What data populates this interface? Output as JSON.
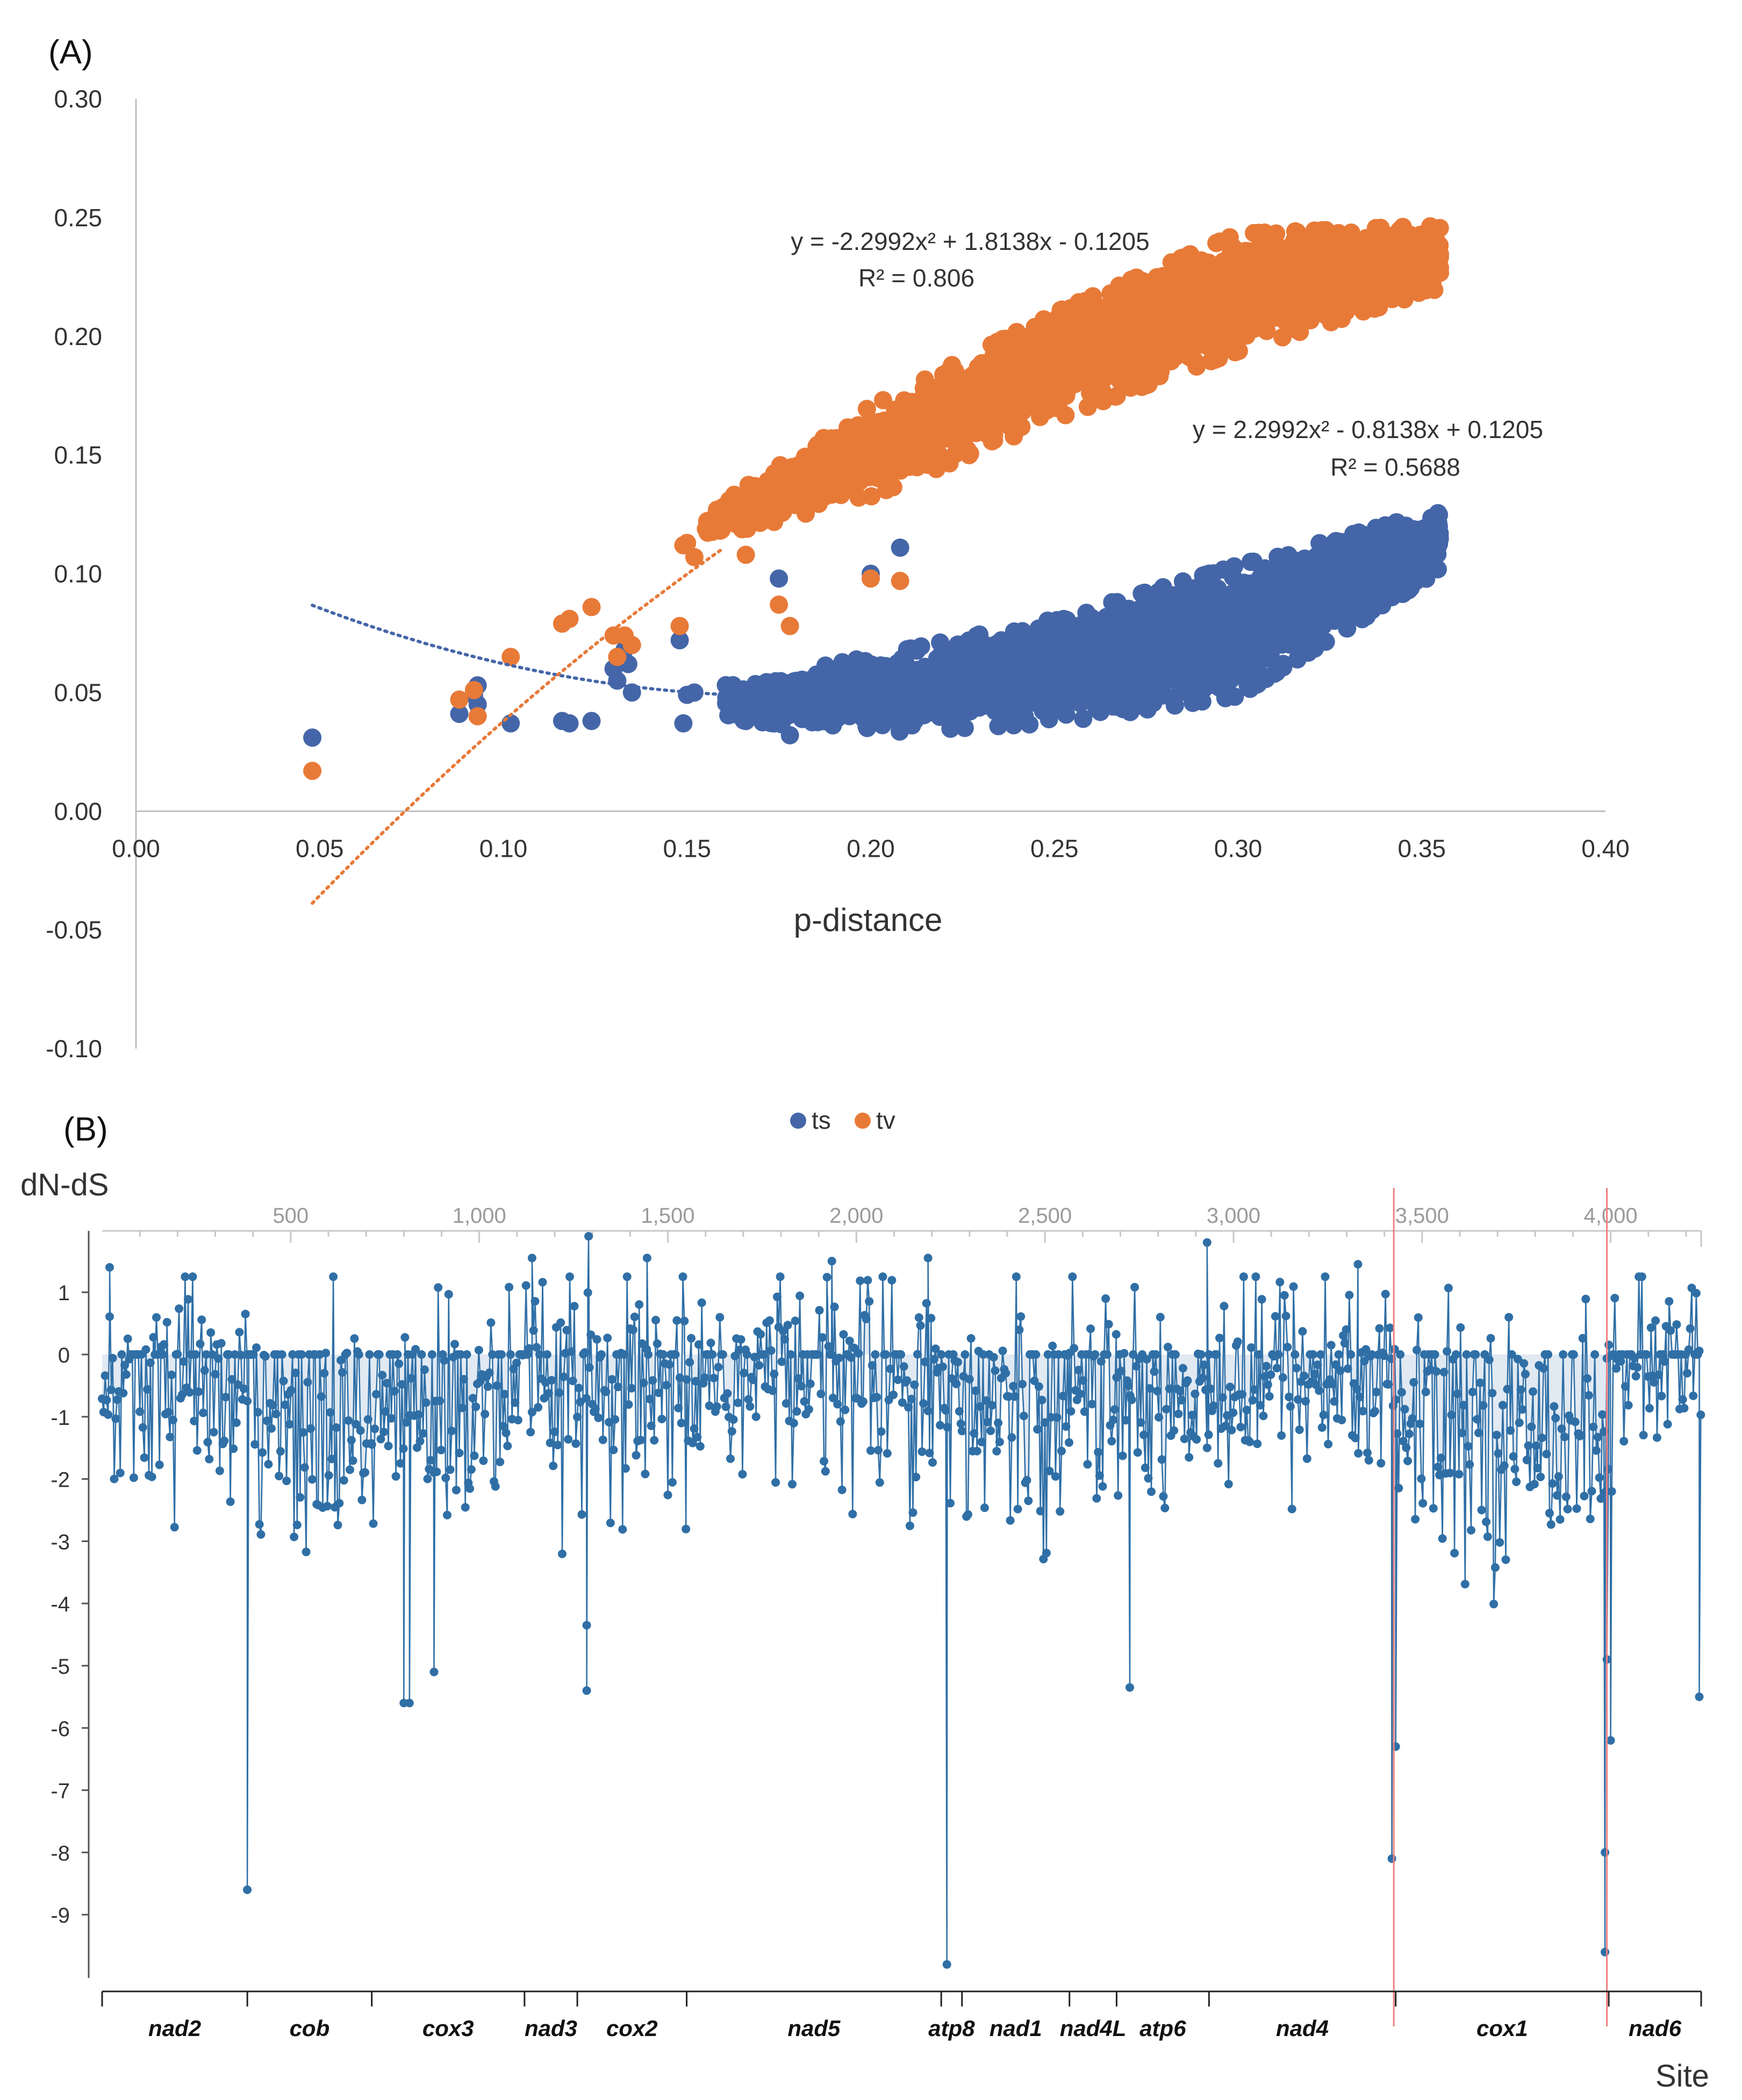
{
  "panels": {
    "a_label": "(A)",
    "b_label": "(B)"
  },
  "chart_data": [
    {
      "type": "scatter",
      "title": "",
      "xlabel": "p-distance",
      "ylabel": "",
      "xlim": [
        0.0,
        0.4
      ],
      "ylim": [
        -0.1,
        0.3
      ],
      "x_ticks": [
        "0.00",
        "0.05",
        "0.10",
        "0.15",
        "0.20",
        "0.25",
        "0.30",
        "0.35",
        "0.40"
      ],
      "y_ticks": [
        "-0.10",
        "-0.05",
        "0.00",
        "0.05",
        "0.10",
        "0.15",
        "0.20",
        "0.25",
        "0.30"
      ],
      "grid": false,
      "legend_position": "bottom",
      "series": [
        {
          "name": "ts",
          "color": "#4466a8",
          "trendline": {
            "a": 2.2992,
            "b": -0.8138,
            "c": 0.1205,
            "x_range": [
              0.048,
              0.18
            ]
          },
          "equation": "y = 2.2992x² - 0.8138x + 0.1205",
          "r2": "R² = 0.5688",
          "outliers": [
            [
              0.048,
              0.031
            ],
            [
              0.088,
              0.041
            ],
            [
              0.092,
              0.049
            ],
            [
              0.093,
              0.053
            ],
            [
              0.093,
              0.045
            ],
            [
              0.102,
              0.037
            ],
            [
              0.116,
              0.038
            ],
            [
              0.118,
              0.037
            ],
            [
              0.124,
              0.038
            ],
            [
              0.13,
              0.06
            ],
            [
              0.131,
              0.055
            ],
            [
              0.133,
              0.068
            ],
            [
              0.134,
              0.062
            ],
            [
              0.135,
              0.05
            ],
            [
              0.148,
              0.072
            ],
            [
              0.149,
              0.037
            ],
            [
              0.15,
              0.049
            ],
            [
              0.152,
              0.05
            ],
            [
              0.166,
              0.038
            ],
            [
              0.175,
              0.098
            ],
            [
              0.178,
              0.032
            ],
            [
              0.2,
              0.1
            ],
            [
              0.208,
              0.111
            ]
          ],
          "cloud": {
            "x_range": [
              0.16,
              0.355
            ],
            "lower": [
              [
                0.16,
                0.04
              ],
              [
                0.2,
                0.035
              ],
              [
                0.25,
                0.04
              ],
              [
                0.3,
                0.052
              ],
              [
                0.355,
                0.103
              ]
            ],
            "upper": [
              [
                0.16,
                0.052
              ],
              [
                0.2,
                0.063
              ],
              [
                0.25,
                0.078
              ],
              [
                0.3,
                0.1
              ],
              [
                0.355,
                0.125
              ]
            ]
          }
        },
        {
          "name": "tv",
          "color": "#e87a38",
          "trendline": {
            "a": -2.2992,
            "b": 1.8138,
            "c": -0.1205,
            "x_range": [
              0.048,
              0.16
            ]
          },
          "equation": "y = -2.2992x² + 1.8138x - 0.1205",
          "r2": "R² = 0.806",
          "outliers": [
            [
              0.048,
              0.017
            ],
            [
              0.088,
              0.047
            ],
            [
              0.092,
              0.051
            ],
            [
              0.093,
              0.04
            ],
            [
              0.102,
              0.065
            ],
            [
              0.116,
              0.079
            ],
            [
              0.118,
              0.081
            ],
            [
              0.124,
              0.086
            ],
            [
              0.13,
              0.074
            ],
            [
              0.131,
              0.065
            ],
            [
              0.133,
              0.074
            ],
            [
              0.135,
              0.07
            ],
            [
              0.148,
              0.078
            ],
            [
              0.149,
              0.112
            ],
            [
              0.15,
              0.113
            ],
            [
              0.152,
              0.107
            ],
            [
              0.166,
              0.108
            ],
            [
              0.175,
              0.087
            ],
            [
              0.178,
              0.078
            ],
            [
              0.2,
              0.098
            ],
            [
              0.208,
              0.097
            ]
          ],
          "cloud": {
            "x_range": [
              0.155,
              0.355
            ],
            "lower": [
              [
                0.155,
                0.115
              ],
              [
                0.2,
                0.135
              ],
              [
                0.25,
                0.168
              ],
              [
                0.3,
                0.197
              ],
              [
                0.355,
                0.222
              ]
            ],
            "upper": [
              [
                0.155,
                0.125
              ],
              [
                0.2,
                0.168
              ],
              [
                0.25,
                0.207
              ],
              [
                0.3,
                0.24
              ],
              [
                0.355,
                0.245
              ]
            ]
          }
        }
      ]
    },
    {
      "type": "line",
      "title": "",
      "ylabel": "dN-dS",
      "xlabel": "Site",
      "xlim": [
        0,
        4240
      ],
      "ylim": [
        -10,
        1.9
      ],
      "x_ticks": [
        "500",
        "1,000",
        "1,500",
        "2,000",
        "2,500",
        "3,000",
        "3,500",
        "4,000"
      ],
      "y_ticks": [
        "1",
        "0",
        "-1",
        "-2",
        "-3",
        "-4",
        "-5",
        "-6",
        "-7",
        "-8",
        "-9"
      ],
      "series_color": "#2f6fa6",
      "fill_color": "#c8d7e8",
      "red_lines": [
        3425,
        3990
      ],
      "genes": [
        {
          "name": "nad2",
          "start": 0,
          "end": 385
        },
        {
          "name": "cob",
          "start": 385,
          "end": 715
        },
        {
          "name": "cox3",
          "start": 715,
          "end": 1120
        },
        {
          "name": "nad3",
          "start": 1120,
          "end": 1260
        },
        {
          "name": "cox2",
          "start": 1260,
          "end": 1550
        },
        {
          "name": "nad5",
          "start": 1550,
          "end": 2225
        },
        {
          "name": "atp8",
          "start": 2225,
          "end": 2280
        },
        {
          "name": "nad1",
          "start": 2280,
          "end": 2565
        },
        {
          "name": "nad4L",
          "start": 2565,
          "end": 2690
        },
        {
          "name": "atp6",
          "start": 2690,
          "end": 2935
        },
        {
          "name": "nad4",
          "start": 2935,
          "end": 3430
        },
        {
          "name": "cox1",
          "start": 3430,
          "end": 3995
        },
        {
          "name": "nad6",
          "start": 3995,
          "end": 4240
        }
      ],
      "extremes": [
        [
          385,
          -8.6
        ],
        [
          800,
          -5.6
        ],
        [
          815,
          -5.6
        ],
        [
          880,
          -5.1
        ],
        [
          1285,
          -4.35
        ],
        [
          1285,
          -5.4
        ],
        [
          2240,
          -9.8
        ],
        [
          2725,
          -5.35
        ],
        [
          3420,
          -8.1
        ],
        [
          3430,
          -6.3
        ],
        [
          3985,
          -9.6
        ],
        [
          3985,
          -8.0
        ],
        [
          3990,
          -4.9
        ],
        [
          4000,
          -6.2
        ],
        [
          4235,
          -5.5
        ],
        [
          1290,
          1.9
        ],
        [
          2930,
          1.8
        ],
        [
          3330,
          1.45
        ],
        [
          1140,
          1.55
        ],
        [
          1445,
          1.55
        ],
        [
          2190,
          1.55
        ],
        [
          1935,
          1.5
        ],
        [
          20,
          1.4
        ]
      ]
    }
  ]
}
